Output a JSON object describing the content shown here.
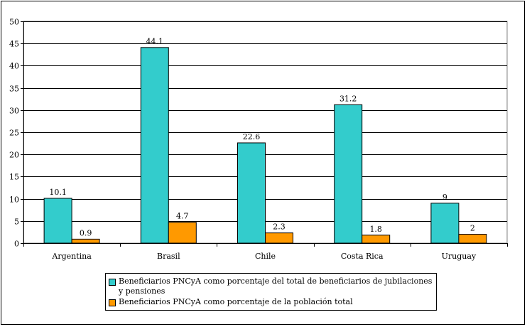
{
  "chart_data": {
    "type": "bar",
    "categories": [
      "Argentina",
      "Brasil",
      "Chile",
      "Costa Rica",
      "Uruguay"
    ],
    "series": [
      {
        "name": "Beneficiarios PNCyA como porcentaje del total de beneficiarios de jubilaciones y pensiones",
        "values": [
          10.1,
          44.1,
          22.6,
          31.2,
          9
        ],
        "labels": [
          "10.1",
          "44.1",
          "22.6",
          "31.2",
          "9"
        ],
        "color": "#33CCCC"
      },
      {
        "name": "Beneficiarios PNCyA como porcentaje de la población total",
        "values": [
          0.9,
          4.7,
          2.3,
          1.8,
          2
        ],
        "labels": [
          "0.9",
          "4.7",
          "2.3",
          "1.8",
          "2"
        ],
        "color": "#FF9900"
      }
    ],
    "yticks": [
      "0",
      "5",
      "10",
      "15",
      "20",
      "25",
      "30",
      "35",
      "40",
      "45",
      "50"
    ],
    "ylim": [
      0,
      50
    ],
    "grid": true,
    "legend_position": "bottom"
  }
}
